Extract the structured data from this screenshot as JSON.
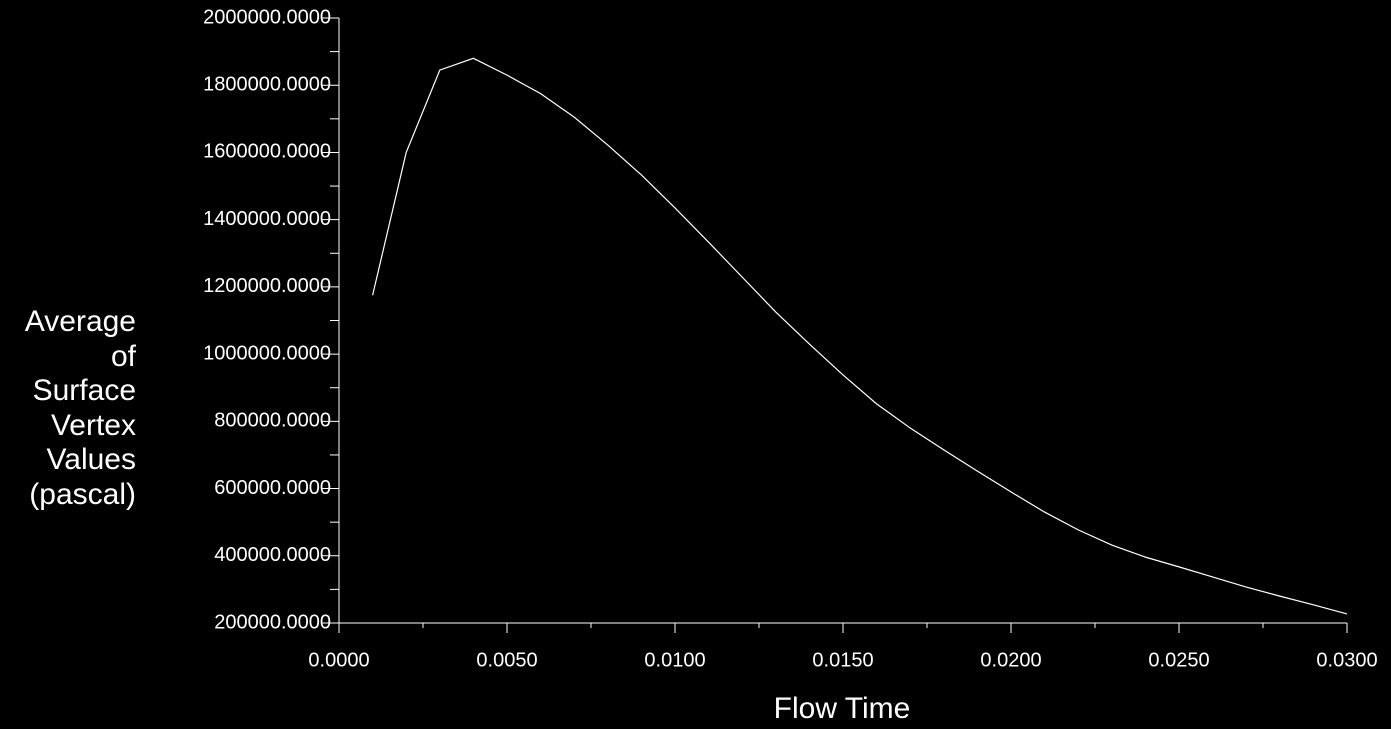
{
  "chart_data": {
    "type": "line",
    "xlabel": "Flow Time",
    "ylabel": "Average of Surface Vertex Values (pascal)",
    "x": [
      0.001,
      0.002,
      0.003,
      0.004,
      0.005,
      0.006,
      0.007,
      0.008,
      0.009,
      0.01,
      0.011,
      0.012,
      0.013,
      0.014,
      0.015,
      0.016,
      0.017,
      0.018,
      0.019,
      0.02,
      0.021,
      0.022,
      0.023,
      0.024,
      0.025,
      0.026,
      0.027,
      0.028,
      0.029,
      0.03
    ],
    "series": [
      {
        "color": "#ffffff",
        "values": [
          1175000,
          1600000,
          1845000,
          1880000,
          1830000,
          1775000,
          1705000,
          1622000,
          1533000,
          1435000,
          1333000,
          1229000,
          1125000,
          1030000,
          938000,
          852000,
          780000,
          715000,
          652000,
          590000,
          530000,
          477000,
          432000,
          396000,
          367000,
          337000,
          307000,
          280000,
          254000,
          227000
        ]
      }
    ],
    "xlim": [
      0,
      0.03
    ],
    "ylim": [
      200000,
      2000000
    ],
    "xticks": [
      {
        "value": 0,
        "label": "0.0000"
      },
      {
        "value": 0.005,
        "label": "0.0050"
      },
      {
        "value": 0.01,
        "label": "0.0100"
      },
      {
        "value": 0.015,
        "label": "0.0150"
      },
      {
        "value": 0.02,
        "label": "0.0200"
      },
      {
        "value": 0.025,
        "label": "0.0250"
      },
      {
        "value": 0.03,
        "label": "0.0300"
      }
    ],
    "yticks": [
      {
        "value": 200000,
        "label": "200000.0000"
      },
      {
        "value": 400000,
        "label": "400000.0000"
      },
      {
        "value": 600000,
        "label": "600000.0000"
      },
      {
        "value": 800000,
        "label": "800000.0000"
      },
      {
        "value": 1000000,
        "label": "1000000.0000"
      },
      {
        "value": 1200000,
        "label": "1200000.0000"
      },
      {
        "value": 1400000,
        "label": "1400000.0000"
      },
      {
        "value": 1600000,
        "label": "1600000.0000"
      },
      {
        "value": 1800000,
        "label": "1800000.0000"
      },
      {
        "value": 2000000,
        "label": "2000000.0000"
      }
    ],
    "x_minor_ticks": [
      0.0025,
      0.0075,
      0.0125,
      0.0175,
      0.0225,
      0.0275
    ],
    "y_minor_ticks": [
      300000,
      500000,
      700000,
      900000,
      1100000,
      1300000,
      1500000,
      1700000,
      1900000
    ],
    "grid": false
  }
}
